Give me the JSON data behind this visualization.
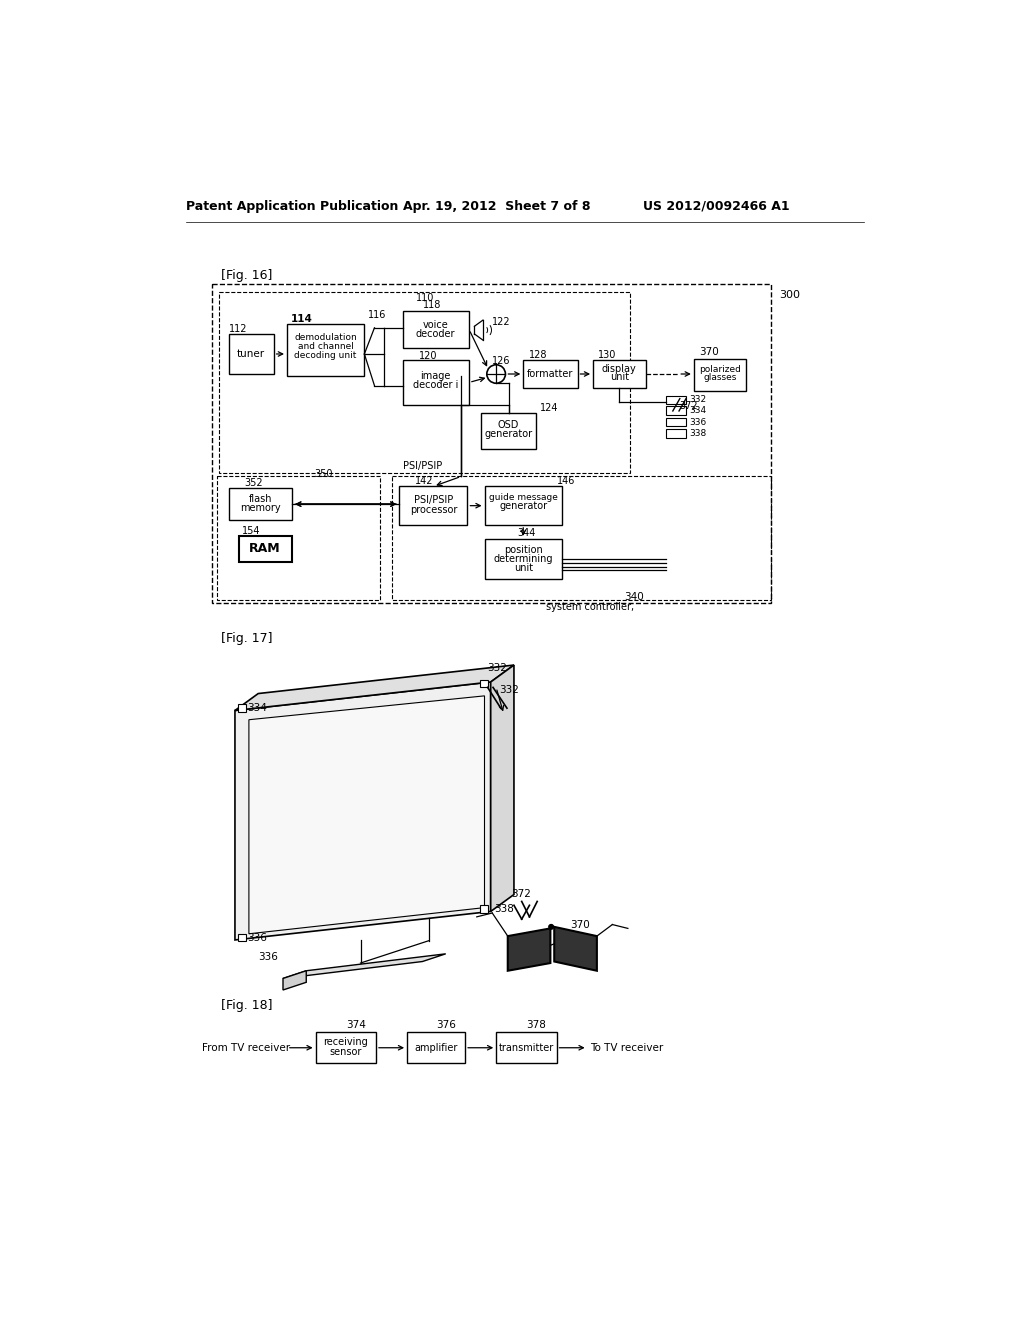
{
  "bg_color": "#ffffff",
  "header_left": "Patent Application Publication",
  "header_mid": "Apr. 19, 2012  Sheet 7 of 8",
  "header_right": "US 2012/0092466 A1",
  "fig16_label": "[Fig. 16]",
  "fig17_label": "[Fig. 17]",
  "fig18_label": "[Fig. 18]"
}
